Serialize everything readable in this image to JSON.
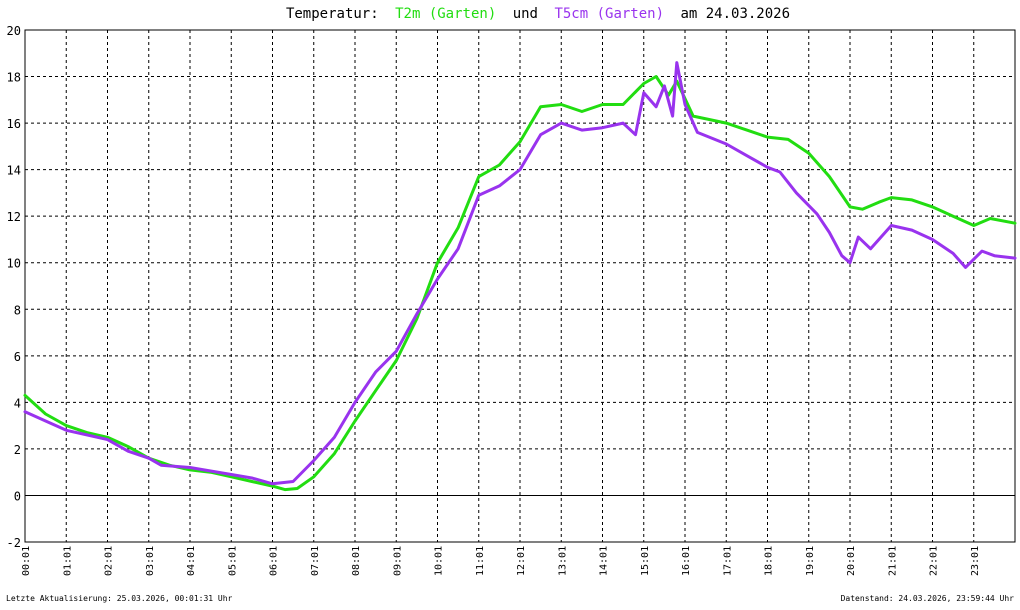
{
  "title": {
    "prefix": "Temperatur:",
    "series_a": "T2m (Garten)",
    "conjunction": "und",
    "series_b": "T5cm (Garten)",
    "suffix": "am 24.03.2026"
  },
  "footer": {
    "left": "Letzte Aktualisierung: 25.03.2026, 00:01:31 Uhr",
    "right": "Datenstand: 24.03.2026, 23:59:44 Uhr"
  },
  "colors": {
    "t2m": "#22dd11",
    "t5cm": "#9933ee",
    "grid": "#000000",
    "title_text": "#000000",
    "background": "#ffffff"
  },
  "chart_data": {
    "type": "line",
    "xlim": [
      0,
      24
    ],
    "ylim": [
      -2,
      20
    ],
    "y_ticks": [
      -2,
      0,
      2,
      4,
      6,
      8,
      10,
      12,
      14,
      16,
      18,
      20
    ],
    "x_tick_labels": [
      "00:01",
      "01:01",
      "02:01",
      "03:01",
      "04:01",
      "05:01",
      "06:01",
      "07:01",
      "08:01",
      "09:01",
      "10:01",
      "11:01",
      "12:01",
      "13:01",
      "14:01",
      "15:01",
      "16:01",
      "17:01",
      "18:01",
      "19:01",
      "20:01",
      "21:01",
      "22:01",
      "23:01"
    ],
    "grid": true,
    "series": [
      {
        "name": "T2m (Garten)",
        "color": "#22dd11",
        "points": [
          [
            0,
            4.3
          ],
          [
            0.5,
            3.5
          ],
          [
            1,
            3.0
          ],
          [
            1.5,
            2.7
          ],
          [
            2,
            2.5
          ],
          [
            2.5,
            2.1
          ],
          [
            3,
            1.6
          ],
          [
            3.5,
            1.3
          ],
          [
            4,
            1.1
          ],
          [
            4.5,
            1.0
          ],
          [
            5,
            0.8
          ],
          [
            5.5,
            0.6
          ],
          [
            6,
            0.4
          ],
          [
            6.3,
            0.25
          ],
          [
            6.6,
            0.3
          ],
          [
            7,
            0.8
          ],
          [
            7.5,
            1.8
          ],
          [
            8,
            3.2
          ],
          [
            8.5,
            4.5
          ],
          [
            9,
            5.8
          ],
          [
            9.5,
            7.6
          ],
          [
            10,
            10.0
          ],
          [
            10.5,
            11.5
          ],
          [
            11,
            13.7
          ],
          [
            11.5,
            14.2
          ],
          [
            12,
            15.2
          ],
          [
            12.5,
            16.7
          ],
          [
            13,
            16.8
          ],
          [
            13.5,
            16.5
          ],
          [
            14,
            16.8
          ],
          [
            14.5,
            16.8
          ],
          [
            15,
            17.7
          ],
          [
            15.3,
            18.0
          ],
          [
            15.6,
            17.2
          ],
          [
            15.8,
            17.8
          ],
          [
            16.2,
            16.3
          ],
          [
            17,
            16.0
          ],
          [
            17.5,
            15.7
          ],
          [
            18,
            15.4
          ],
          [
            18.5,
            15.3
          ],
          [
            19,
            14.7
          ],
          [
            19.5,
            13.7
          ],
          [
            20,
            12.4
          ],
          [
            20.3,
            12.3
          ],
          [
            20.7,
            12.6
          ],
          [
            21,
            12.8
          ],
          [
            21.5,
            12.7
          ],
          [
            22,
            12.4
          ],
          [
            22.5,
            12.0
          ],
          [
            23,
            11.6
          ],
          [
            23.4,
            11.9
          ],
          [
            24,
            11.7
          ]
        ]
      },
      {
        "name": "T5cm (Garten)",
        "color": "#9933ee",
        "points": [
          [
            0,
            3.6
          ],
          [
            0.5,
            3.2
          ],
          [
            1,
            2.8
          ],
          [
            1.5,
            2.6
          ],
          [
            2,
            2.4
          ],
          [
            2.5,
            1.9
          ],
          [
            3,
            1.6
          ],
          [
            3.3,
            1.3
          ],
          [
            4,
            1.2
          ],
          [
            4.5,
            1.05
          ],
          [
            5,
            0.9
          ],
          [
            5.5,
            0.75
          ],
          [
            6,
            0.5
          ],
          [
            6.5,
            0.6
          ],
          [
            7,
            1.5
          ],
          [
            7.5,
            2.5
          ],
          [
            8,
            4.0
          ],
          [
            8.5,
            5.3
          ],
          [
            9,
            6.2
          ],
          [
            9.5,
            7.8
          ],
          [
            10,
            9.3
          ],
          [
            10.5,
            10.6
          ],
          [
            11,
            12.9
          ],
          [
            11.5,
            13.3
          ],
          [
            12,
            14.0
          ],
          [
            12.5,
            15.5
          ],
          [
            13,
            16.0
          ],
          [
            13.5,
            15.7
          ],
          [
            14,
            15.8
          ],
          [
            14.5,
            16.0
          ],
          [
            14.8,
            15.5
          ],
          [
            15.0,
            17.3
          ],
          [
            15.3,
            16.7
          ],
          [
            15.5,
            17.6
          ],
          [
            15.7,
            16.3
          ],
          [
            15.8,
            18.6
          ],
          [
            16.0,
            16.8
          ],
          [
            16.3,
            15.6
          ],
          [
            17,
            15.1
          ],
          [
            17.5,
            14.6
          ],
          [
            18,
            14.1
          ],
          [
            18.3,
            13.9
          ],
          [
            18.7,
            13.0
          ],
          [
            19.2,
            12.1
          ],
          [
            19.5,
            11.3
          ],
          [
            19.8,
            10.3
          ],
          [
            20.0,
            10.0
          ],
          [
            20.2,
            11.1
          ],
          [
            20.5,
            10.6
          ],
          [
            21,
            11.6
          ],
          [
            21.5,
            11.4
          ],
          [
            22,
            11.0
          ],
          [
            22.5,
            10.4
          ],
          [
            22.8,
            9.8
          ],
          [
            23.2,
            10.5
          ],
          [
            23.5,
            10.3
          ],
          [
            24,
            10.2
          ]
        ]
      }
    ]
  }
}
